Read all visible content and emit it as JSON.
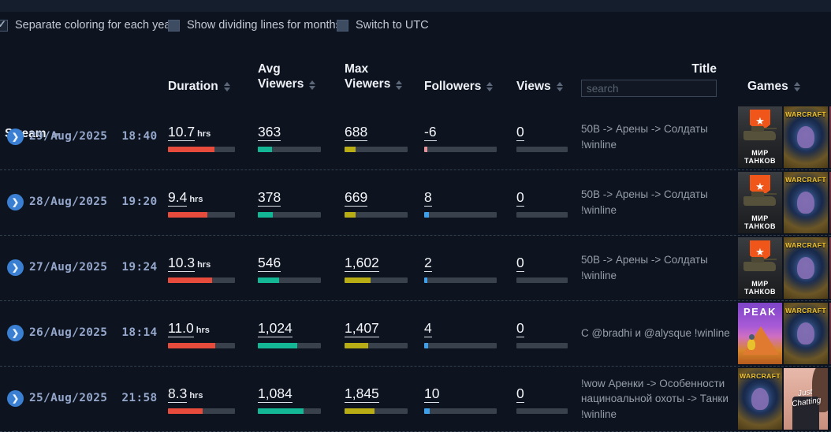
{
  "controls": [
    {
      "label": "Separate coloring for each year",
      "checked": true
    },
    {
      "label": "Show dividing lines for months",
      "checked": false
    },
    {
      "label": "Switch to UTC",
      "checked": false
    }
  ],
  "header": {
    "stream": "Stream",
    "duration": "Duration",
    "avg_viewers": "Avg Viewers",
    "max_viewers": "Max Viewers",
    "followers": "Followers",
    "views": "Views",
    "title": "Title",
    "games": "Games",
    "search_placeholder": "search"
  },
  "games_art": {
    "wot": {
      "name": "Мир Танков",
      "caption": "МИР ТАНКОВ"
    },
    "wow": {
      "name": "World of Warcraft",
      "caption": "WARCRAFT"
    },
    "peak": {
      "name": "PEAK",
      "caption": "PEAK"
    },
    "jc": {
      "name": "Just Chatting",
      "caption": "Just Chatting"
    }
  },
  "rows": [
    {
      "date": "29/Aug/2025",
      "time": "18:40",
      "duration": {
        "value": "10.7",
        "unit": "hrs",
        "pct": 69
      },
      "avg": {
        "value": "363",
        "pct": 23
      },
      "max": {
        "value": "688",
        "pct": 17
      },
      "followers": {
        "value": "-6",
        "pct": 4,
        "negative": true
      },
      "views": {
        "value": "0",
        "pct": 0
      },
      "title": "50В -> Арены -> Солдаты !winline",
      "games": [
        "wot",
        "wow"
      ],
      "more": true
    },
    {
      "date": "28/Aug/2025",
      "time": "19:20",
      "duration": {
        "value": "9.4",
        "unit": "hrs",
        "pct": 59
      },
      "avg": {
        "value": "378",
        "pct": 24
      },
      "max": {
        "value": "669",
        "pct": 17
      },
      "followers": {
        "value": "8",
        "pct": 6,
        "negative": false
      },
      "views": {
        "value": "0",
        "pct": 0
      },
      "title": "50В -> Арены -> Солдаты !winline",
      "games": [
        "wot",
        "wow"
      ],
      "more": true
    },
    {
      "date": "27/Aug/2025",
      "time": "19:24",
      "duration": {
        "value": "10.3",
        "unit": "hrs",
        "pct": 66
      },
      "avg": {
        "value": "546",
        "pct": 34
      },
      "max": {
        "value": "1,602",
        "pct": 41
      },
      "followers": {
        "value": "2",
        "pct": 4,
        "negative": false
      },
      "views": {
        "value": "0",
        "pct": 0
      },
      "title": "50В -> Арены -> Солдаты !winline",
      "games": [
        "wot",
        "wow"
      ],
      "more": true
    },
    {
      "date": "26/Aug/2025",
      "time": "18:14",
      "duration": {
        "value": "11.0",
        "unit": "hrs",
        "pct": 71
      },
      "avg": {
        "value": "1,024",
        "pct": 63
      },
      "max": {
        "value": "1,407",
        "pct": 37
      },
      "followers": {
        "value": "4",
        "pct": 5,
        "negative": false
      },
      "views": {
        "value": "0",
        "pct": 0
      },
      "title": "С @bradhi и @alysque !winline",
      "games": [
        "peak",
        "wow"
      ],
      "more": true
    },
    {
      "date": "25/Aug/2025",
      "time": "21:58",
      "duration": {
        "value": "8.3",
        "unit": "hrs",
        "pct": 52
      },
      "avg": {
        "value": "1,084",
        "pct": 72
      },
      "max": {
        "value": "1,845",
        "pct": 47
      },
      "followers": {
        "value": "10",
        "pct": 8,
        "negative": false
      },
      "views": {
        "value": "0",
        "pct": 0
      },
      "title": "!wow Аренки -> Особенности нациноальной охоты -> Танки !winline",
      "games": [
        "wow",
        "jc"
      ],
      "more": false
    }
  ]
}
